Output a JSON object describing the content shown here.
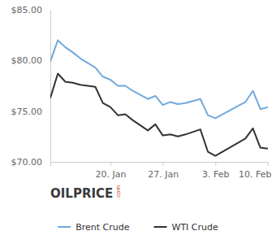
{
  "chart_data": {
    "type": "line",
    "x": [
      12,
      13,
      14,
      15,
      16,
      18,
      19,
      20,
      21,
      22,
      23,
      24,
      25,
      26,
      27,
      28,
      29,
      30,
      32,
      33,
      34,
      38,
      39,
      40,
      41
    ],
    "series": [
      {
        "name": "Brent Crude",
        "color": "#72a9dd",
        "values": [
          79.9,
          82.0,
          81.3,
          80.8,
          80.2,
          79.3,
          78.4,
          78.1,
          77.5,
          77.5,
          77.0,
          76.6,
          76.2,
          76.5,
          75.6,
          75.9,
          75.7,
          75.8,
          76.2,
          74.6,
          74.3,
          75.9,
          77.0,
          75.2,
          75.4
        ]
      },
      {
        "name": "WTI Crude",
        "color": "#333333",
        "values": [
          76.3,
          78.7,
          77.9,
          77.8,
          77.6,
          77.4,
          75.8,
          75.4,
          74.6,
          74.7,
          74.1,
          73.6,
          73.1,
          73.7,
          72.6,
          72.7,
          72.5,
          72.7,
          73.2,
          71.0,
          70.6,
          72.3,
          73.3,
          71.4,
          71.3
        ]
      }
    ],
    "xlim": [
      12,
      41
    ],
    "xticks": [
      {
        "value": 20,
        "label": "20. Jan"
      },
      {
        "value": 27,
        "label": "27. Jan"
      },
      {
        "value": 34,
        "label": "3. Feb"
      },
      {
        "value": 41,
        "label": "10. Feb"
      }
    ],
    "ylim": [
      70,
      85
    ],
    "yticks": [
      {
        "value": 70,
        "label": "$70.00"
      },
      {
        "value": 75,
        "label": "$75.00"
      },
      {
        "value": 80,
        "label": "$80.00"
      },
      {
        "value": 85,
        "label": "$85.00"
      }
    ],
    "grid": false,
    "legend": "bottom",
    "annotations": [
      {
        "text": "OILPRICE"
      },
      {
        "text": ".com"
      }
    ]
  }
}
